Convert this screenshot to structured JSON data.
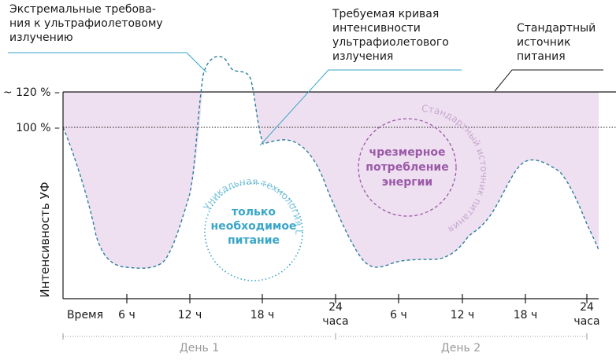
{
  "colors": {
    "area_fill": "#eee0f0",
    "curve": "#2e7ea1",
    "cyan_line": "#3aa6c8",
    "teal": "#3aa6c8",
    "purple": "#9b5aa8",
    "purple_light": "#c9a8d2",
    "axis": "#1a1a1a",
    "day_text": "#9a9a9a"
  },
  "annotations": {
    "extreme": [
      "Экстремальные требова-",
      "ния к ультрафиолетовому",
      "излучению"
    ],
    "required_curve": [
      "Требуемая кривая",
      "интенсивности",
      "ультрафиолетового",
      "излучения"
    ],
    "standard_source": [
      "Стандартный",
      "источник",
      "питания"
    ]
  },
  "y_axis": {
    "label": "Интенсивность УФ",
    "level_120": "~ 120 % –",
    "level_100": "100 % –"
  },
  "x_axis": {
    "start_label": "Время",
    "ticks": [
      {
        "line1": "6 ч",
        "line2": ""
      },
      {
        "line1": "12 ч",
        "line2": ""
      },
      {
        "line1": "18 ч",
        "line2": ""
      },
      {
        "line1": "24",
        "line2": "часа"
      },
      {
        "line1": "6 ч",
        "line2": ""
      },
      {
        "line1": "12 ч",
        "line2": ""
      },
      {
        "line1": "18 ч",
        "line2": ""
      },
      {
        "line1": "24",
        "line2": "часа"
      }
    ],
    "days": [
      "День 1",
      "День 2"
    ]
  },
  "circles": {
    "left": {
      "label_lines": [
        "только",
        "необходимое",
        "питание"
      ],
      "arc_text": "Уникальная технология LifeAGE®"
    },
    "right": {
      "label_lines": [
        "чрезмерное",
        "потребление",
        "энергии"
      ],
      "arc_text": "Стандартный источник питания"
    }
  }
}
